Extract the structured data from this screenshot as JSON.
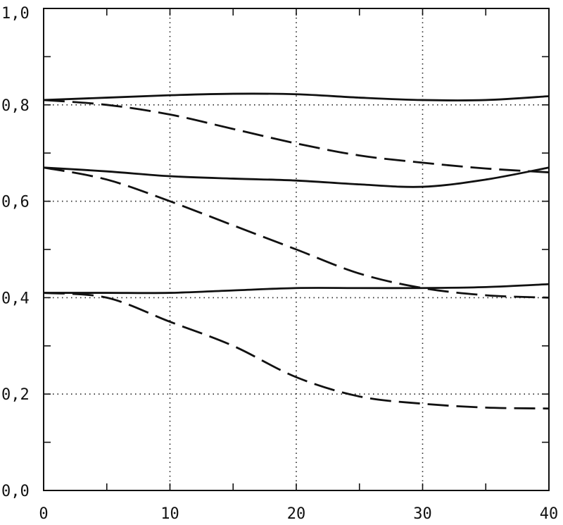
{
  "chart_data": {
    "type": "line",
    "title": "",
    "xlabel": "",
    "ylabel": "",
    "xlim": [
      0,
      40
    ],
    "ylim": [
      0,
      1
    ],
    "x_ticks": [
      0,
      10,
      20,
      30,
      40
    ],
    "x_tick_labels": [
      "0",
      "10",
      "20",
      "30",
      "40"
    ],
    "y_ticks": [
      0,
      0.2,
      0.4,
      0.6,
      0.8,
      1.0
    ],
    "y_tick_labels": [
      "0,0",
      "0,2",
      "0,4",
      "0,6",
      "0,8",
      "1,0"
    ],
    "grid": "dotted at labeled ticks",
    "legend": "none",
    "series": [
      {
        "style": "solid",
        "x": [
          0,
          5,
          10,
          15,
          20,
          25,
          30,
          35,
          40
        ],
        "values": [
          0.81,
          0.815,
          0.82,
          0.823,
          0.822,
          0.815,
          0.81,
          0.81,
          0.818
        ]
      },
      {
        "style": "dashed",
        "x": [
          0,
          5,
          10,
          15,
          20,
          25,
          30,
          35,
          40
        ],
        "values": [
          0.81,
          0.8,
          0.78,
          0.75,
          0.72,
          0.695,
          0.68,
          0.668,
          0.66
        ]
      },
      {
        "style": "solid",
        "x": [
          0,
          5,
          10,
          15,
          20,
          25,
          30,
          35,
          40
        ],
        "values": [
          0.67,
          0.662,
          0.652,
          0.647,
          0.643,
          0.635,
          0.63,
          0.645,
          0.67
        ]
      },
      {
        "style": "dashed",
        "x": [
          0,
          5,
          10,
          15,
          20,
          25,
          30,
          35,
          40
        ],
        "values": [
          0.67,
          0.645,
          0.6,
          0.55,
          0.5,
          0.45,
          0.42,
          0.405,
          0.4
        ]
      },
      {
        "style": "solid",
        "x": [
          0,
          5,
          10,
          15,
          20,
          25,
          30,
          35,
          40
        ],
        "values": [
          0.41,
          0.41,
          0.41,
          0.415,
          0.42,
          0.42,
          0.42,
          0.422,
          0.428
        ]
      },
      {
        "style": "dashed",
        "x": [
          0,
          5,
          10,
          15,
          20,
          25,
          30,
          35,
          40
        ],
        "values": [
          0.41,
          0.4,
          0.35,
          0.3,
          0.235,
          0.195,
          0.18,
          0.172,
          0.17
        ]
      }
    ]
  }
}
